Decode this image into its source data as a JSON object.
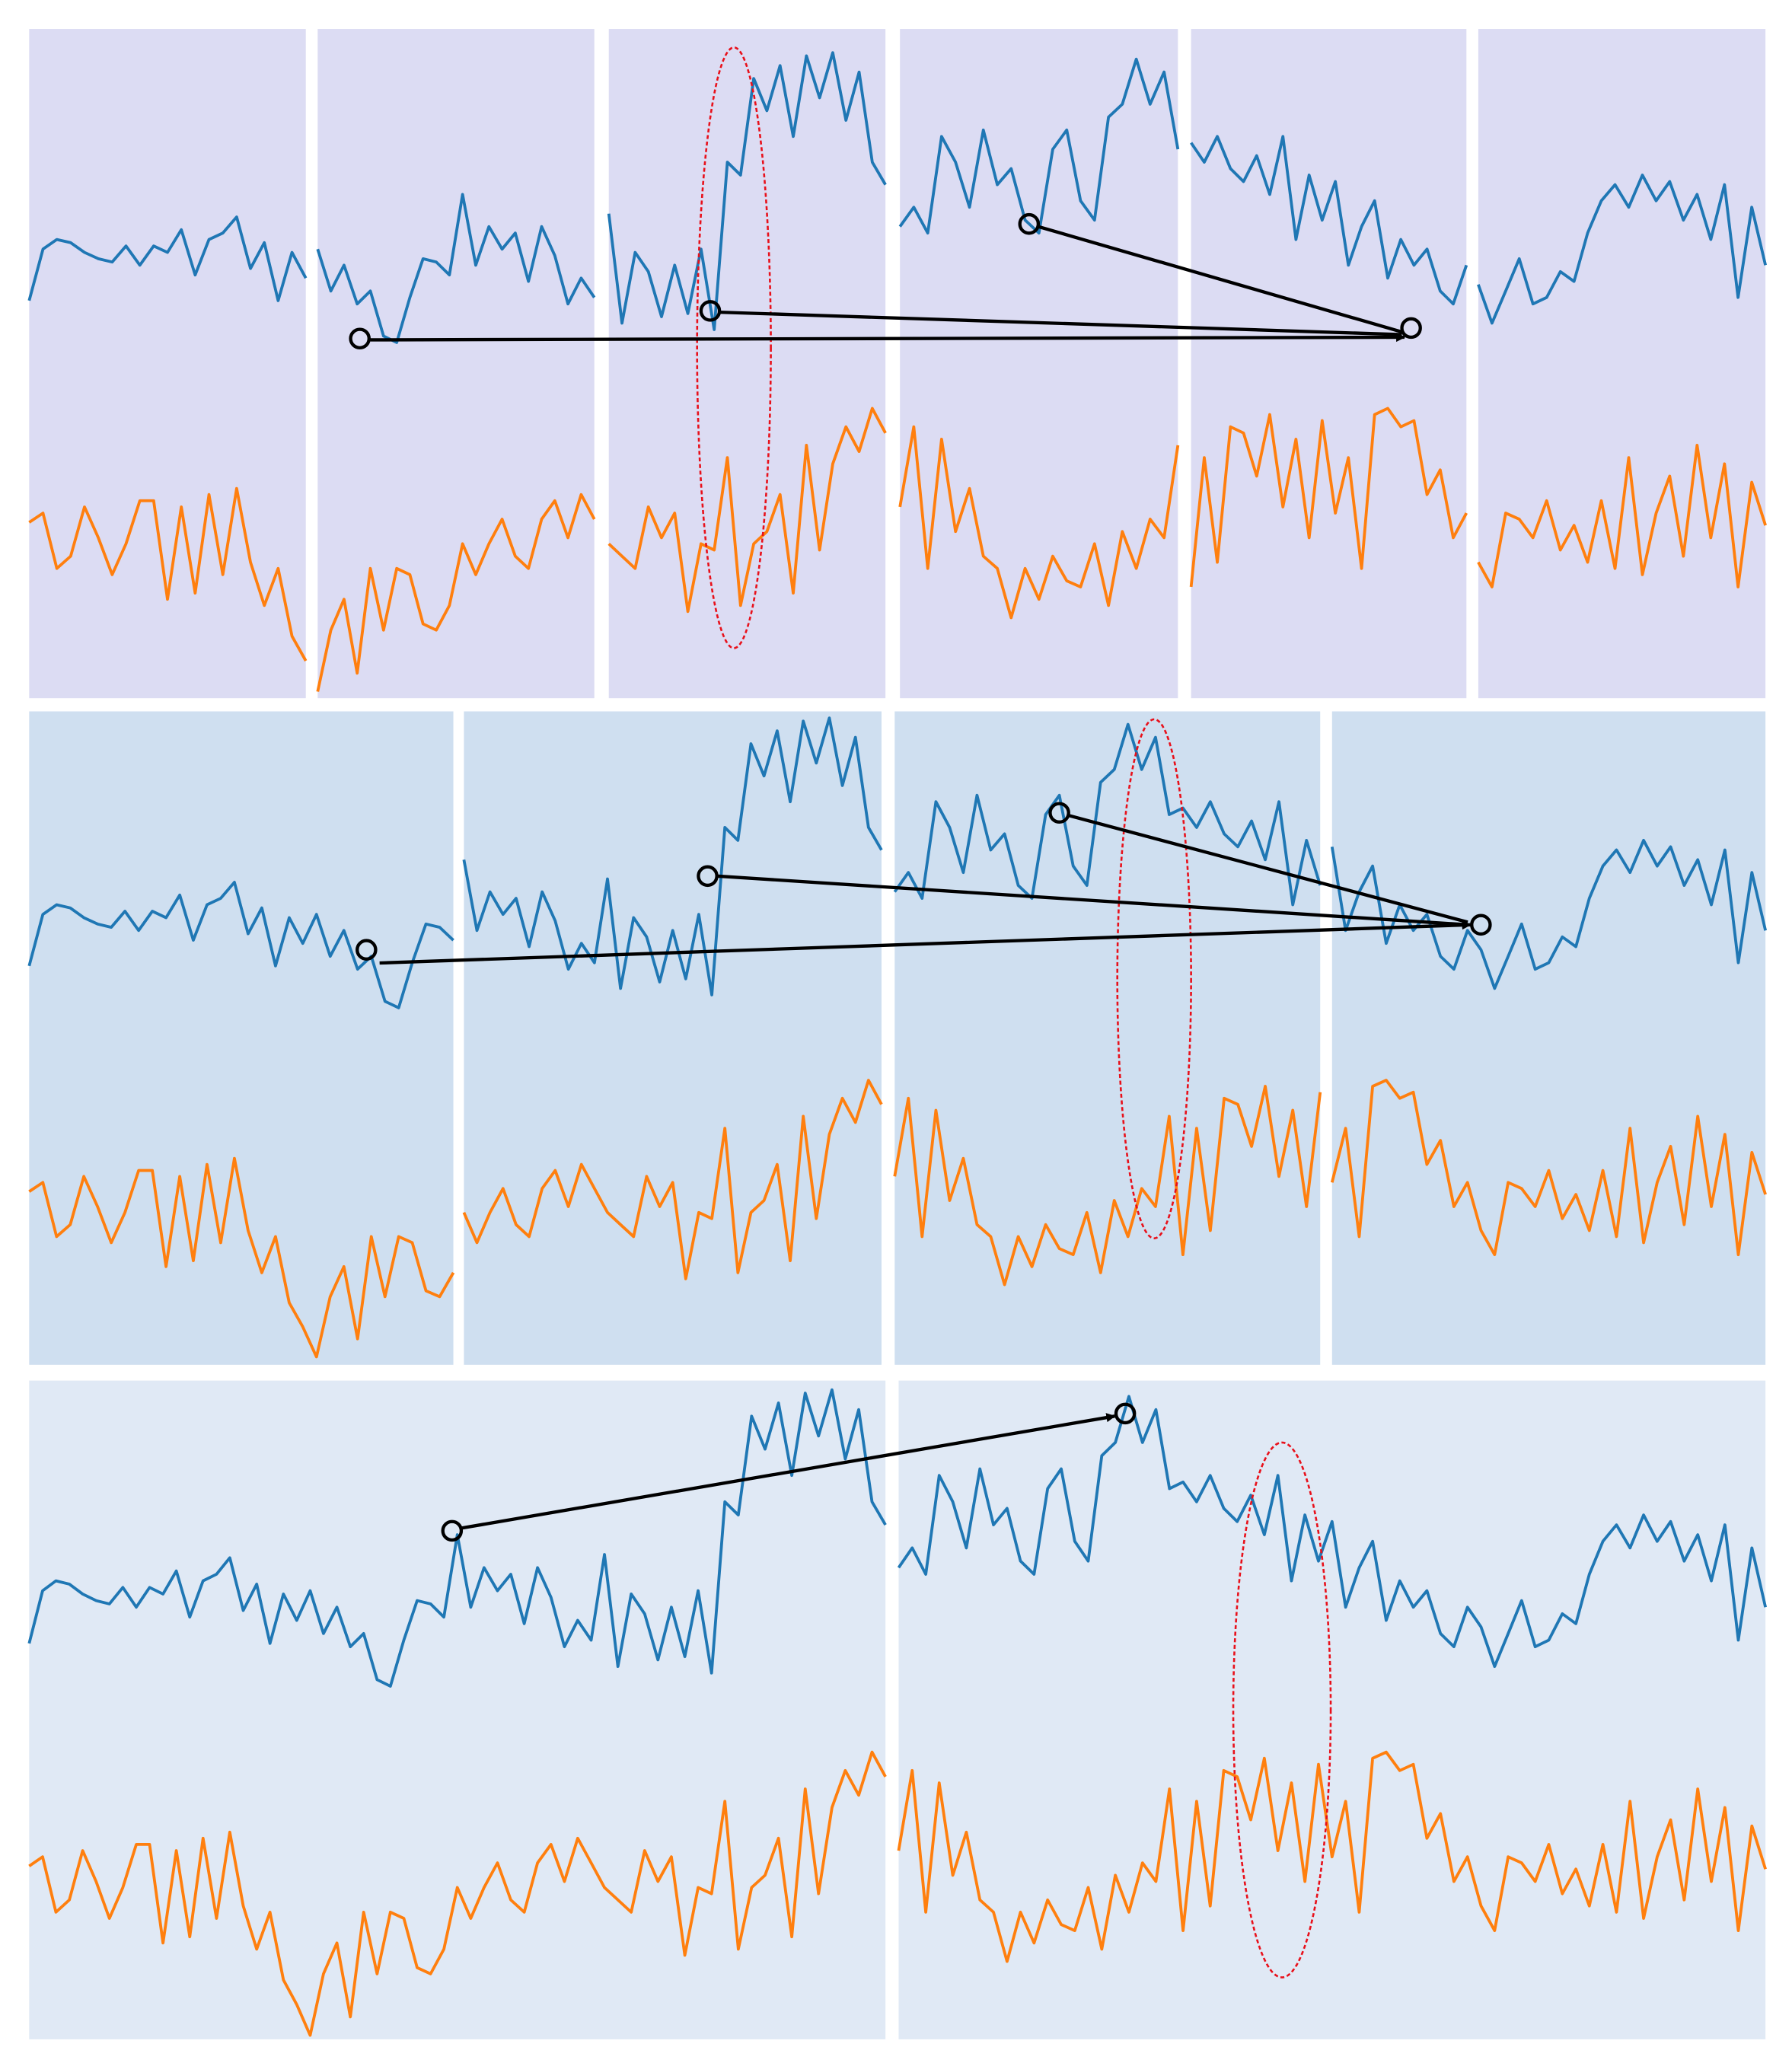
{
  "chart_data": {
    "type": "line",
    "series": [
      {
        "color": "#1f77b4",
        "values": [
          19,
          35,
          38,
          37,
          34,
          32,
          31,
          36,
          30,
          36,
          34,
          41,
          27,
          38,
          40,
          45,
          29,
          37,
          19,
          34,
          26,
          35,
          22,
          30,
          18,
          22,
          8,
          6,
          20,
          32,
          31,
          27,
          52,
          30,
          42,
          35,
          40,
          25,
          42,
          33,
          18,
          26,
          20,
          46,
          12,
          34,
          28,
          14,
          30,
          15,
          35,
          10,
          62,
          58,
          88,
          78,
          92,
          70,
          95,
          82,
          96,
          75,
          90,
          62,
          55,
          42,
          48,
          40,
          70,
          62,
          48,
          72,
          55,
          60,
          44,
          40,
          66,
          72,
          50,
          44,
          76,
          80,
          94,
          80,
          90,
          66,
          68,
          62,
          70,
          60,
          56,
          64,
          52,
          70,
          38,
          58,
          44,
          56,
          30,
          42,
          50,
          26,
          38,
          30,
          35,
          22,
          18,
          30,
          24,
          12,
          22,
          32,
          18,
          20,
          28,
          25,
          40,
          50,
          55,
          48,
          58,
          50,
          56,
          44,
          52,
          38,
          55,
          20,
          48,
          30
        ]
      },
      {
        "color": "#ff7f0e",
        "values": [
          55,
          58,
          40,
          44,
          60,
          50,
          38,
          48,
          62,
          62,
          30,
          60,
          32,
          64,
          38,
          66,
          42,
          28,
          40,
          18,
          10,
          0,
          20,
          30,
          6,
          40,
          20,
          40,
          38,
          22,
          20,
          28,
          48,
          38,
          48,
          56,
          44,
          40,
          56,
          62,
          50,
          64,
          56,
          48,
          44,
          40,
          60,
          50,
          58,
          26,
          48,
          46,
          76,
          28,
          48,
          52,
          64,
          32,
          80,
          46,
          74,
          86,
          78,
          92,
          84,
          60,
          86,
          40,
          82,
          52,
          66,
          44,
          40,
          24,
          40,
          30,
          44,
          36,
          34,
          48,
          28,
          52,
          40,
          56,
          50,
          80,
          34,
          76,
          42,
          86,
          84,
          70,
          90,
          60,
          82,
          50,
          88,
          58,
          76,
          40,
          90,
          92,
          86,
          88,
          64,
          72,
          50,
          58,
          42,
          34,
          58,
          56,
          50,
          62,
          46,
          54,
          42,
          62,
          40,
          76,
          38,
          58,
          70,
          44,
          80,
          50,
          74,
          34,
          68,
          54
        ]
      }
    ]
  }
}
